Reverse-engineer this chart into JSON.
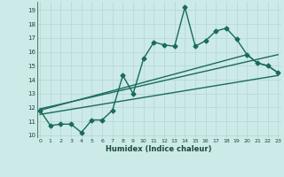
{
  "xlabel": "Humidex (Indice chaleur)",
  "bg_color": "#cceae8",
  "line_color": "#1a6b5a",
  "grid_color": "#b8d8d5",
  "yticks": [
    10,
    11,
    12,
    13,
    14,
    15,
    16,
    17,
    18,
    19
  ],
  "xticks": [
    0,
    1,
    2,
    3,
    4,
    5,
    6,
    7,
    8,
    9,
    10,
    11,
    12,
    13,
    14,
    15,
    16,
    17,
    18,
    19,
    20,
    21,
    22,
    23
  ],
  "xlim": [
    -0.3,
    23.3
  ],
  "ylim": [
    9.8,
    19.6
  ],
  "series1_x": [
    0,
    1,
    2,
    3,
    4,
    5,
    6,
    7,
    8,
    9,
    10,
    11,
    12,
    13,
    14,
    15,
    16,
    17,
    18,
    19,
    20,
    21,
    22,
    23
  ],
  "series1_y": [
    11.8,
    10.7,
    10.8,
    10.8,
    10.2,
    11.1,
    11.1,
    11.8,
    14.3,
    13.0,
    15.5,
    16.7,
    16.5,
    16.4,
    19.2,
    16.4,
    16.8,
    17.5,
    17.7,
    16.9,
    15.8,
    15.2,
    15.0,
    14.5
  ],
  "series2_x": [
    0,
    23
  ],
  "series2_y": [
    11.5,
    14.3
  ],
  "series3_x": [
    0,
    23
  ],
  "series3_y": [
    11.9,
    15.8
  ],
  "series4_x": [
    0,
    20,
    21,
    22,
    23
  ],
  "series4_y": [
    11.8,
    15.8,
    15.2,
    15.0,
    14.5
  ],
  "marker_size": 2.5,
  "line_width": 1.0
}
